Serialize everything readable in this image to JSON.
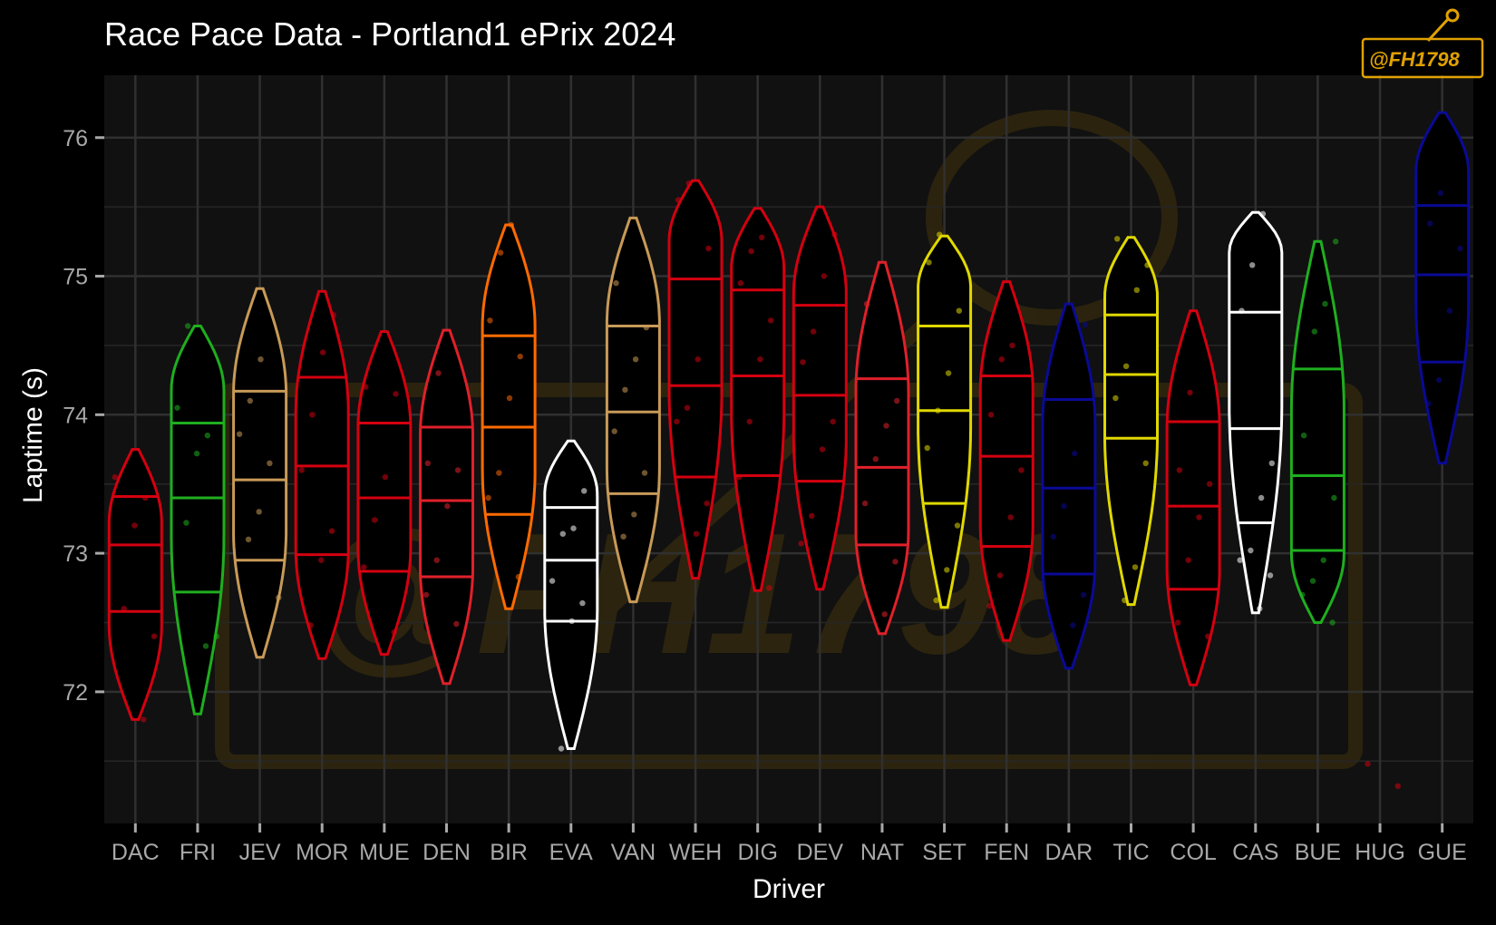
{
  "chart_data": {
    "type": "violin",
    "title": "Race Pace Data - Portland1 ePrix 2024",
    "xlabel": "Driver",
    "ylabel": "Laptime (s)",
    "ylim": [
      71.05,
      76.45
    ],
    "yticks": [
      72,
      73,
      74,
      75,
      76
    ],
    "ytick_labels": [
      "72",
      "73",
      "74",
      "75",
      "76"
    ],
    "grid": true,
    "legend": "none",
    "background": "#111111",
    "watermark": "@FH1798",
    "drivers": [
      {
        "code": "DAC",
        "color": "#d40010",
        "min": 71.8,
        "max": 73.75,
        "q1": 72.58,
        "median": 73.06,
        "q3": 73.41,
        "lower_widest": 72.9,
        "points": [
          73.55,
          73.4,
          73.2,
          72.6,
          72.4,
          71.8
        ]
      },
      {
        "code": "FRI",
        "color": "#1fae1f",
        "min": 71.84,
        "max": 74.64,
        "q1": 72.72,
        "median": 73.4,
        "q3": 73.94,
        "lower_widest": 73.9,
        "points": [
          74.64,
          74.05,
          73.85,
          73.72,
          73.22,
          72.4,
          72.33
        ]
      },
      {
        "code": "JEV",
        "color": "#c89a58",
        "min": 72.25,
        "max": 74.91,
        "q1": 72.95,
        "median": 73.53,
        "q3": 74.17,
        "lower_widest": 73.7,
        "points": [
          74.4,
          74.1,
          73.86,
          73.65,
          73.3,
          73.1,
          72.68
        ]
      },
      {
        "code": "MOR",
        "color": "#d40010",
        "min": 72.24,
        "max": 74.89,
        "q1": 72.99,
        "median": 73.63,
        "q3": 74.27,
        "lower_widest": 73.5,
        "points": [
          74.72,
          74.45,
          74.0,
          73.6,
          73.16,
          72.95,
          72.48
        ]
      },
      {
        "code": "MUE",
        "color": "#d40010",
        "min": 72.27,
        "max": 74.6,
        "q1": 72.87,
        "median": 73.4,
        "q3": 73.94,
        "lower_widest": 73.5,
        "points": [
          74.2,
          74.15,
          73.55,
          73.24,
          72.9,
          72.43
        ]
      },
      {
        "code": "DEN",
        "color": "#e0202a",
        "min": 72.06,
        "max": 74.61,
        "q1": 72.83,
        "median": 73.38,
        "q3": 73.91,
        "lower_widest": 73.4,
        "points": [
          74.3,
          73.65,
          73.6,
          73.34,
          72.95,
          72.7,
          72.49
        ]
      },
      {
        "code": "BIR",
        "color": "#ff6a00",
        "min": 72.6,
        "max": 75.37,
        "q1": 73.28,
        "median": 73.91,
        "q3": 74.57,
        "lower_widest": 74.2,
        "points": [
          75.37,
          75.17,
          74.68,
          74.42,
          74.12,
          73.58,
          73.4,
          72.83
        ]
      },
      {
        "code": "EVA",
        "color": "#ffffff",
        "min": 71.59,
        "max": 73.81,
        "q1": 72.51,
        "median": 72.95,
        "q3": 73.33,
        "lower_widest": 73.2,
        "points": [
          73.45,
          73.18,
          73.14,
          72.8,
          72.64,
          72.51,
          71.59
        ]
      },
      {
        "code": "VAN",
        "color": "#c89a58",
        "min": 72.65,
        "max": 75.42,
        "q1": 73.43,
        "median": 74.02,
        "q3": 74.64,
        "lower_widest": 74.2,
        "points": [
          74.95,
          74.63,
          74.4,
          74.18,
          73.88,
          73.58,
          73.28,
          73.12
        ]
      },
      {
        "code": "WEH",
        "color": "#d40010",
        "min": 72.82,
        "max": 75.69,
        "q1": 73.55,
        "median": 74.21,
        "q3": 74.98,
        "lower_widest": 75.0,
        "points": [
          75.67,
          75.55,
          75.2,
          74.4,
          74.05,
          73.95,
          73.36,
          73.14
        ]
      },
      {
        "code": "DIG",
        "color": "#d40010",
        "min": 72.73,
        "max": 75.49,
        "q1": 73.56,
        "median": 74.28,
        "q3": 74.9,
        "lower_widest": 74.8,
        "points": [
          75.28,
          75.18,
          74.95,
          74.68,
          74.4,
          73.95,
          73.55,
          72.75
        ]
      },
      {
        "code": "DEV",
        "color": "#d40010",
        "min": 72.74,
        "max": 75.5,
        "q1": 73.52,
        "median": 74.14,
        "q3": 74.79,
        "lower_widest": 74.5,
        "points": [
          75.3,
          75.0,
          74.6,
          74.38,
          73.95,
          73.75,
          73.27,
          73.07
        ]
      },
      {
        "code": "NAT",
        "color": "#e0202a",
        "min": 72.42,
        "max": 75.1,
        "q1": 73.06,
        "median": 73.62,
        "q3": 74.26,
        "lower_widest": 73.6,
        "points": [
          74.8,
          74.1,
          73.92,
          73.68,
          73.36,
          72.94,
          72.56
        ]
      },
      {
        "code": "SET",
        "color": "#e0d800",
        "min": 72.61,
        "max": 75.29,
        "q1": 73.36,
        "median": 74.03,
        "q3": 74.64,
        "lower_widest": 74.7,
        "points": [
          75.3,
          75.1,
          74.75,
          74.3,
          74.03,
          73.76,
          73.2,
          72.88,
          72.66
        ]
      },
      {
        "code": "FEN",
        "color": "#d40010",
        "min": 72.37,
        "max": 74.96,
        "q1": 73.05,
        "median": 73.7,
        "q3": 74.28,
        "lower_widest": 73.7,
        "points": [
          74.5,
          74.4,
          74.0,
          73.6,
          73.26,
          72.84,
          72.62
        ]
      },
      {
        "code": "DAR",
        "color": "#0a0a96",
        "min": 72.17,
        "max": 74.8,
        "q1": 72.85,
        "median": 73.47,
        "q3": 74.11,
        "lower_widest": 73.4,
        "points": [
          74.65,
          73.72,
          73.34,
          73.12,
          72.7,
          72.48
        ]
      },
      {
        "code": "TIC",
        "color": "#e0d800",
        "min": 72.63,
        "max": 75.28,
        "q1": 73.83,
        "median": 74.29,
        "q3": 74.72,
        "lower_widest": 74.6,
        "points": [
          75.27,
          75.08,
          74.9,
          74.35,
          74.12,
          73.65,
          72.9,
          72.66
        ]
      },
      {
        "code": "COL",
        "color": "#d40010",
        "min": 72.05,
        "max": 74.75,
        "q1": 72.74,
        "median": 73.34,
        "q3": 73.95,
        "lower_widest": 73.4,
        "points": [
          74.16,
          73.6,
          73.5,
          73.26,
          72.95,
          72.5,
          72.4
        ]
      },
      {
        "code": "CAS",
        "color": "#ffffff",
        "min": 72.57,
        "max": 75.46,
        "q1": 73.22,
        "median": 73.9,
        "q3": 74.74,
        "lower_widest": 75.0,
        "points": [
          75.45,
          75.08,
          74.75,
          73.65,
          73.4,
          73.02,
          72.95,
          72.84,
          72.6
        ]
      },
      {
        "code": "BUE",
        "color": "#1fae1f",
        "min": 72.5,
        "max": 75.25,
        "q1": 73.02,
        "median": 73.56,
        "q3": 74.33,
        "lower_widest": 73.3,
        "points": [
          75.25,
          74.8,
          74.6,
          73.85,
          73.4,
          72.95,
          72.8,
          72.7,
          72.5
        ]
      },
      {
        "code": "HUG",
        "color": "#d40010",
        "min": null,
        "max": null,
        "q1": null,
        "median": null,
        "q3": null,
        "lower_widest": null,
        "points": [
          71.48,
          71.32
        ]
      },
      {
        "code": "GUE",
        "color": "#0a0a96",
        "min": 73.65,
        "max": 76.18,
        "q1": 74.38,
        "median": 75.01,
        "q3": 75.51,
        "lower_widest": 75.5,
        "points": [
          75.6,
          75.38,
          75.2,
          74.75,
          74.25,
          74.08
        ]
      }
    ]
  }
}
